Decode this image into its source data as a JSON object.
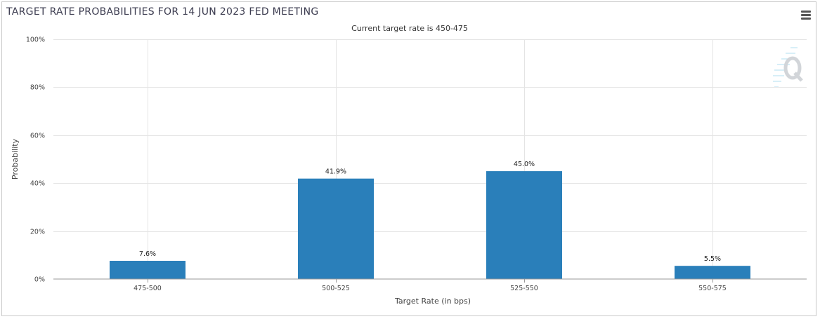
{
  "header": {
    "title": "TARGET RATE PROBABILITIES FOR 14 JUN 2023 FED MEETING",
    "menu_icon": "hamburger-menu-icon",
    "logo_icon": "cme-q-logo-icon"
  },
  "chart_data": {
    "type": "bar",
    "title": "TARGET RATE PROBABILITIES FOR 14 JUN 2023 FED MEETING",
    "subtitle": "Current target rate is 450-475",
    "categories": [
      "475-500",
      "500-525",
      "525-550",
      "550-575"
    ],
    "values": [
      7.6,
      41.9,
      45.0,
      5.5
    ],
    "data_labels": [
      "7.6%",
      "41.9%",
      "45.0%",
      "5.5%"
    ],
    "xlabel": "Target Rate (in bps)",
    "ylabel": "Probability",
    "ylim": [
      0,
      100
    ],
    "yticks": [
      0,
      20,
      40,
      60,
      80,
      100
    ],
    "ytick_labels": [
      "0%",
      "20%",
      "40%",
      "60%",
      "80%",
      "100%"
    ],
    "grid": true,
    "colors": {
      "bar": "#2a7fba",
      "grid": "#e4e4e4",
      "axis": "#999999"
    }
  }
}
